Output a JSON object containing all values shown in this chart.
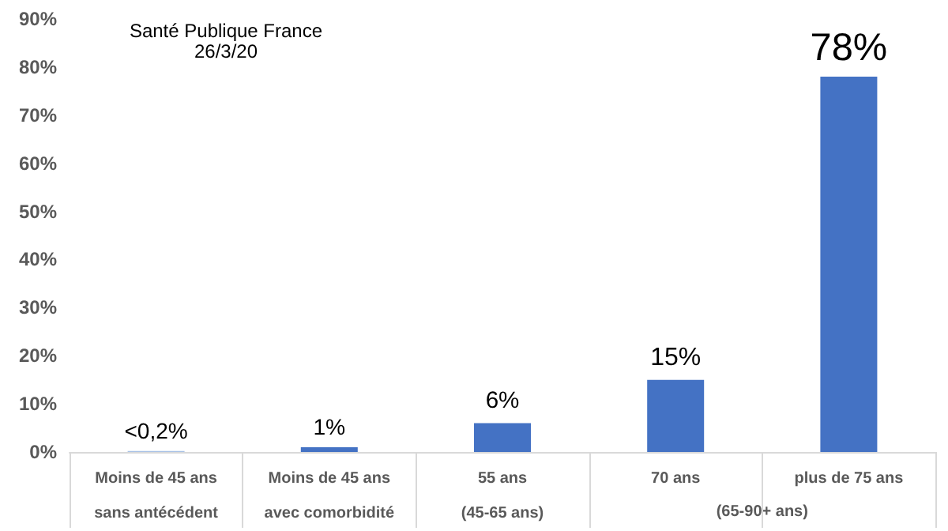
{
  "chart_data": {
    "type": "bar",
    "title": "Santé Publique France\n26/3/20",
    "categories": [
      "Moins de 45 ans\nsans antécédent",
      "Moins de 45 ans\navec comorbidité",
      "55 ans\n(45-65 ans)",
      "70 ans",
      "plus de 75 ans"
    ],
    "values": [
      0.2,
      1,
      6,
      15,
      78
    ],
    "colors": [
      "#a9c2e6",
      "#4472c4",
      "#4472c4",
      "#4472c4",
      "#4472c4"
    ],
    "value_labels": [
      "<0,2%",
      "1%",
      "6%",
      "15%",
      "78%"
    ],
    "annotations": [
      "(65-90+ ans)"
    ],
    "ylim": [
      0,
      90
    ],
    "yticks": [
      {
        "value": 0,
        "label": "0%"
      },
      {
        "value": 10,
        "label": "10%"
      },
      {
        "value": 20,
        "label": "20%"
      },
      {
        "value": 30,
        "label": "30%"
      },
      {
        "value": 40,
        "label": "40%"
      },
      {
        "value": 50,
        "label": "50%"
      },
      {
        "value": 60,
        "label": "60%"
      },
      {
        "value": 70,
        "label": "70%"
      },
      {
        "value": 80,
        "label": "80%"
      },
      {
        "value": 90,
        "label": "90%"
      }
    ],
    "grid": false
  }
}
